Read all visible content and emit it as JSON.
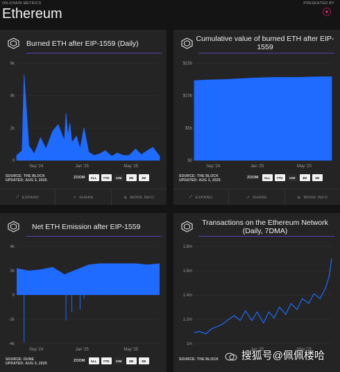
{
  "header": {
    "eyebrow": "ON-CHAIN METRICS",
    "title": "Ethereum",
    "presented_by": "PRESENTED BY"
  },
  "watermark": "搜狐号@佩佩楼哈",
  "footer_labels": {
    "expand": "EXPAND",
    "share": "SHARE",
    "more_info": "MORE INFO"
  },
  "zoom": {
    "label": "ZOOM",
    "options": [
      "ALL",
      "YTD",
      "12M",
      "3M",
      "1M"
    ],
    "active": "12M"
  },
  "panels": [
    {
      "title": "Burned ETH after EIP-1559 (Daily)",
      "source": "SOURCE: THE BLOCK",
      "updated": "UPDATED: AUG 3, 2025"
    },
    {
      "title": "Cumulative value of burned ETH after EIP-1559",
      "source": "SOURCE: THE BLOCK",
      "updated": "UPDATED: AUG 3, 2025"
    },
    {
      "title": "Net ETH Emission after EIP-1559",
      "source": "SOURCE: DUNE",
      "updated": "UPDATED: AUG 3, 2025"
    },
    {
      "title": "Transactions on the Ethereum Network (Daily, 7DMA)",
      "source": "SOURCE: THE BLOCK",
      "updated": ""
    }
  ],
  "chart_data": [
    {
      "type": "area",
      "title": "Burned ETH after EIP-1559 (Daily)",
      "x": [
        "2024-08-01",
        "2024-08-15",
        "2024-08-20",
        "2024-09-01",
        "2024-09-15",
        "2024-10-01",
        "2024-10-15",
        "2024-11-01",
        "2024-11-15",
        "2024-12-01",
        "2024-12-05",
        "2024-12-10",
        "2024-12-15",
        "2024-12-20",
        "2025-01-01",
        "2025-01-10",
        "2025-01-20",
        "2025-02-01",
        "2025-02-15",
        "2025-03-01",
        "2025-03-15",
        "2025-04-01",
        "2025-04-15",
        "2025-05-01",
        "2025-05-15",
        "2025-06-01",
        "2025-06-15",
        "2025-07-01",
        "2025-07-15",
        "2025-08-01"
      ],
      "y": [
        300,
        600,
        5300,
        900,
        400,
        1400,
        700,
        1800,
        2200,
        1200,
        2900,
        1500,
        2300,
        1100,
        1500,
        700,
        2000,
        500,
        300,
        400,
        600,
        250,
        450,
        300,
        300,
        700,
        350,
        600,
        800,
        250
      ],
      "ylim": [
        0,
        6000
      ],
      "yticks": [
        "6k",
        "4k",
        "2k",
        "0"
      ],
      "xticks": [
        "Sep '24",
        "Jan '25",
        "May '25"
      ]
    },
    {
      "type": "area",
      "title": "Cumulative value of burned ETH after EIP-1559",
      "x": [
        "2024-08-01",
        "2024-09-01",
        "2024-11-01",
        "2025-01-01",
        "2025-03-01",
        "2025-05-01",
        "2025-07-01",
        "2025-08-01"
      ],
      "y": [
        12.3,
        12.4,
        12.5,
        12.7,
        12.8,
        12.8,
        12.9,
        12.9
      ],
      "ylim": [
        0,
        15
      ],
      "yticks": [
        "$15b",
        "$10b",
        "$5b",
        "$0"
      ],
      "xticks": [
        "Sep '24",
        "Jan '25",
        "May '25"
      ]
    },
    {
      "type": "bar",
      "title": "Net ETH Emission after EIP-1559",
      "x": [
        "2024-08-01",
        "2024-09-01",
        "2024-10-01",
        "2024-11-01",
        "2024-12-01",
        "2025-01-01",
        "2025-02-01",
        "2025-03-01",
        "2025-04-01",
        "2025-05-01",
        "2025-06-01",
        "2025-07-01",
        "2025-08-01"
      ],
      "y": [
        2200,
        2000,
        2100,
        2300,
        1700,
        2100,
        2500,
        2600,
        2600,
        2600,
        2600,
        2500,
        2600
      ],
      "negative_spikes": [
        {
          "x": "2024-08-20",
          "y": -3900
        },
        {
          "x": "2024-12-05",
          "y": -2100
        },
        {
          "x": "2024-12-20",
          "y": -1400
        },
        {
          "x": "2025-01-10",
          "y": -1200
        },
        {
          "x": "2025-01-20",
          "y": -300
        }
      ],
      "ylim": [
        -4000,
        4000
      ],
      "yticks": [
        "4k",
        "2k",
        "0",
        "-2k",
        "-4k"
      ],
      "xticks": [
        "Sep '24",
        "Jan '25",
        "May '25"
      ]
    },
    {
      "type": "line",
      "title": "Transactions on the Ethereum Network (Daily, 7DMA)",
      "x": [
        "2024-08-01",
        "2024-08-15",
        "2024-09-01",
        "2024-09-15",
        "2024-10-01",
        "2024-10-15",
        "2024-11-01",
        "2024-11-15",
        "2024-12-01",
        "2024-12-15",
        "2025-01-01",
        "2025-01-15",
        "2025-02-01",
        "2025-02-15",
        "2025-03-01",
        "2025-03-15",
        "2025-04-01",
        "2025-04-15",
        "2025-05-01",
        "2025-05-15",
        "2025-06-01",
        "2025-06-15",
        "2025-07-01",
        "2025-07-15",
        "2025-07-25",
        "2025-08-01"
      ],
      "y": [
        1.09,
        1.1,
        1.08,
        1.12,
        1.14,
        1.16,
        1.2,
        1.23,
        1.19,
        1.27,
        1.19,
        1.26,
        1.17,
        1.26,
        1.21,
        1.3,
        1.24,
        1.33,
        1.28,
        1.37,
        1.33,
        1.41,
        1.37,
        1.45,
        1.55,
        1.7
      ],
      "ylim": [
        1.0,
        1.8
      ],
      "yticks": [
        "1.8m",
        "1.6m",
        "1.4m",
        "1.2m",
        "1m"
      ],
      "xticks": [
        "Jan '25",
        "May '25"
      ]
    }
  ],
  "colors": {
    "series": "#1f6bff",
    "accent": "#5a3fa8",
    "panel_bg": "#242424",
    "page_bg": "#141414"
  }
}
